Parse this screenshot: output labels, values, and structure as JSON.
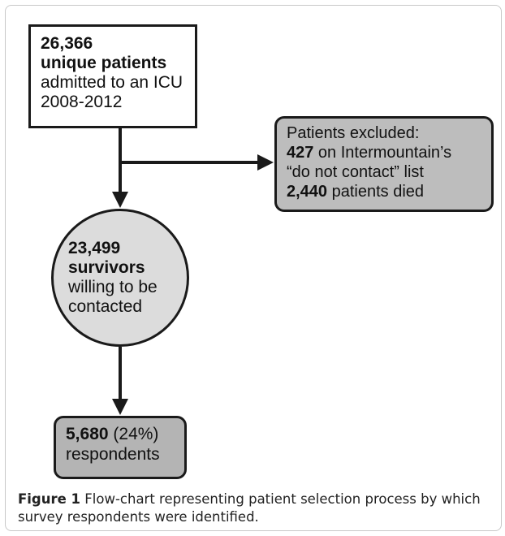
{
  "admitted": {
    "count": "26,366",
    "label": "unique patients",
    "line3": "admitted to an ICU",
    "years": "2008-2012"
  },
  "excluded": {
    "title": "Patients excluded:",
    "dnc_count": "427",
    "dnc_text_1": " on Intermountain’s",
    "dnc_text_2": "“do not contact” list",
    "died_count": "2,440",
    "died_text": " patients died"
  },
  "survivors": {
    "count": "23,499",
    "label": "survivors",
    "line3": "willing to be",
    "line4": "contacted"
  },
  "respondents": {
    "count": "5,680",
    "pct": " (24%)",
    "label": "respondents"
  },
  "caption": {
    "label": "Figure 1",
    "text": " Flow-chart representing patient selection process by which survey respondents were identified."
  },
  "colors": {
    "excluded_fill": "#bdbdbd",
    "survivors_fill": "#dcdcdc",
    "respondents_fill": "#b4b4b4",
    "stroke": "#1a1a1a"
  }
}
